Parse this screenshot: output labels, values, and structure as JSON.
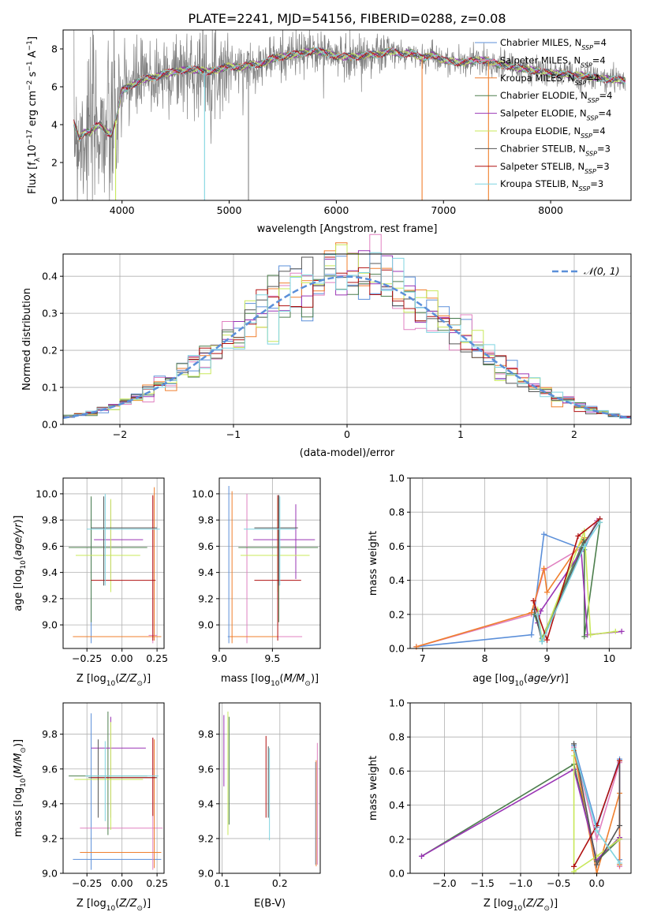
{
  "figure": {
    "title": "PLATE=2241, MJD=54156, FIBERID=0288, z=0.08"
  },
  "colors": {
    "Chabrier MILES": "#5b8fd9",
    "Salpeter MILES": "#e080c0",
    "Kroupa MILES": "#f07f2d",
    "Chabrier ELODIE": "#4d7f4d",
    "Salpeter ELODIE": "#9a35b5",
    "Kroupa ELODIE": "#c8e85a",
    "Chabrier STELIB": "#555555",
    "Salpeter STELIB": "#b01010",
    "Kroupa STELIB": "#7fd4e0",
    "data": "#808080",
    "normal": "#5b8fd9",
    "grid": "#b0b0b0"
  },
  "chart_data": [
    {
      "id": "spectrum",
      "type": "line",
      "xlabel": "wavelength [Angstrom, rest frame]",
      "ylabel": "Flux [f_λ 10^{-17} erg cm^{-2} s^{-1} A^{-1}]",
      "xlim": [
        3450,
        8750
      ],
      "ylim": [
        0,
        9
      ],
      "xticks": [
        4000,
        5000,
        6000,
        7000,
        8000
      ],
      "yticks": [
        0,
        2,
        4,
        6,
        8
      ],
      "grid": false,
      "legend_position": "right",
      "legend": [
        {
          "base": "Chabrier MILES, N",
          "sub": "SSP",
          "tail": "=4"
        },
        {
          "base": "Salpeter MILES, N",
          "sub": "SSP",
          "tail": "=4"
        },
        {
          "base": "Kroupa MILES, N",
          "sub": "SSP",
          "tail": "=4"
        },
        {
          "base": "Chabrier ELODIE, N",
          "sub": "SSP",
          "tail": "=4"
        },
        {
          "base": "Salpeter ELODIE, N",
          "sub": "SSP",
          "tail": "=4"
        },
        {
          "base": "Kroupa ELODIE, N",
          "sub": "SSP",
          "tail": "=4"
        },
        {
          "base": "Chabrier STELIB, N",
          "sub": "SSP",
          "tail": "=3"
        },
        {
          "base": "Salpeter STELIB, N",
          "sub": "SSP",
          "tail": "=3"
        },
        {
          "base": "Kroupa STELIB, N",
          "sub": "SSP",
          "tail": "=3"
        }
      ],
      "continuum": {
        "x": [
          3550,
          3600,
          3650,
          3700,
          3750,
          3800,
          3850,
          3900,
          3950,
          4000,
          4100,
          4200,
          4300,
          4400,
          4500,
          4600,
          4700,
          4800,
          4900,
          5000,
          5100,
          5200,
          5300,
          5400,
          5500,
          5600,
          5700,
          5800,
          5900,
          6000,
          6100,
          6200,
          6300,
          6400,
          6500,
          6600,
          6700,
          6800,
          6900,
          7000,
          7100,
          7200,
          7300,
          7400,
          7500,
          7600,
          7700,
          7800,
          7900,
          8000,
          8100,
          8200,
          8300,
          8400,
          8500,
          8600,
          8700
        ],
        "y": [
          4.1,
          3.3,
          3.6,
          3.6,
          3.9,
          4.0,
          3.6,
          3.5,
          4.4,
          5.8,
          6.1,
          6.4,
          6.5,
          6.7,
          6.8,
          6.9,
          6.9,
          6.8,
          6.9,
          7.1,
          7.0,
          7.2,
          7.2,
          7.5,
          7.6,
          7.7,
          7.8,
          7.9,
          7.8,
          7.6,
          7.6,
          7.6,
          7.7,
          7.7,
          7.9,
          7.7,
          7.8,
          7.5,
          7.7,
          7.4,
          7.3,
          7.3,
          7.4,
          7.4,
          7.2,
          7.1,
          7.0,
          6.9,
          6.8,
          6.7,
          6.7,
          6.6,
          6.6,
          6.5,
          6.4,
          6.4,
          6.3
        ]
      }
    },
    {
      "id": "residuals",
      "type": "histogram",
      "xlabel": "(data-model)/error",
      "ylabel": "Normed distribution",
      "xlim": [
        -2.5,
        2.5
      ],
      "ylim": [
        0,
        0.46
      ],
      "xticks": [
        -2,
        -1,
        0,
        1,
        2
      ],
      "yticks": [
        0.0,
        0.1,
        0.2,
        0.3,
        0.4
      ],
      "grid": true,
      "legend_position": "top-right",
      "legend": "𝒩(0, 1)",
      "bin_width": 0.1,
      "normal": {
        "mean": 0,
        "sigma": 1
      }
    },
    {
      "id": "age_vs_z",
      "type": "errorbar",
      "xlabel": "Z [log10(Z/Z⊙)]",
      "ylabel": "age  [log10(age/yr)]",
      "xlim": [
        -0.42,
        0.3
      ],
      "ylim": [
        8.82,
        10.12
      ],
      "xticks": [
        -0.25,
        0.0,
        0.25
      ],
      "yticks": [
        9.0,
        9.2,
        9.4,
        9.6,
        9.8,
        10.0
      ],
      "grid": true,
      "points": [
        {
          "model": "Chabrier MILES",
          "x": -0.22,
          "xlo": -0.35,
          "xhi": 0.28,
          "y": 8.91,
          "ylo": 8.86,
          "yhi": 9.97
        },
        {
          "model": "Salpeter MILES",
          "x": 0.22,
          "xlo": 0.19,
          "xhi": 0.25,
          "y": 8.92,
          "ylo": 8.86,
          "yhi": 9.98
        },
        {
          "model": "Kroupa MILES",
          "x": 0.23,
          "xlo": -0.35,
          "xhi": 0.28,
          "y": 8.91,
          "ylo": 8.88,
          "yhi": 10.05
        },
        {
          "model": "Chabrier ELODIE",
          "x": -0.22,
          "xlo": -0.38,
          "xhi": 0.18,
          "y": 9.59,
          "ylo": 9.02,
          "yhi": 9.98
        },
        {
          "model": "Salpeter ELODIE",
          "x": -0.08,
          "xlo": -0.2,
          "xhi": 0.15,
          "y": 9.65,
          "ylo": 9.35,
          "yhi": 9.95
        },
        {
          "model": "Kroupa ELODIE",
          "x": -0.08,
          "xlo": -0.33,
          "xhi": 0.13,
          "y": 9.53,
          "ylo": 9.25,
          "yhi": 9.96
        },
        {
          "model": "Chabrier STELIB",
          "x": -0.13,
          "xlo": -0.22,
          "xhi": 0.25,
          "y": 9.74,
          "ylo": 9.3,
          "yhi": 9.98
        },
        {
          "model": "Salpeter STELIB",
          "x": 0.22,
          "xlo": -0.22,
          "xhi": 0.24,
          "y": 9.34,
          "ylo": 8.88,
          "yhi": 9.99
        },
        {
          "model": "Kroupa STELIB",
          "x": -0.12,
          "xlo": -0.25,
          "xhi": 0.27,
          "y": 9.73,
          "ylo": 9.3,
          "yhi": 10.0
        }
      ]
    },
    {
      "id": "age_vs_mass",
      "type": "errorbar",
      "xlabel": "mass [log10(M/M⊙)]",
      "ylabel": "",
      "xlim": [
        9.0,
        9.95
      ],
      "ylim": [
        8.82,
        10.12
      ],
      "xticks": [
        9.0,
        9.5
      ],
      "yticks": [
        9.0,
        9.2,
        9.4,
        9.6,
        9.8,
        10.0
      ],
      "grid": true,
      "points": [
        {
          "model": "Chabrier MILES",
          "x": 9.09,
          "xlo": 9.08,
          "xhi": 9.58,
          "y": 8.91,
          "ylo": 8.86,
          "yhi": 10.06
        },
        {
          "model": "Salpeter MILES",
          "x": 9.26,
          "xlo": 9.1,
          "xhi": 9.78,
          "y": 8.91,
          "ylo": 8.86,
          "yhi": 10.0
        },
        {
          "model": "Kroupa MILES",
          "x": 9.12,
          "xlo": 9.1,
          "xhi": 9.55,
          "y": 8.91,
          "ylo": 8.86,
          "yhi": 10.02
        },
        {
          "model": "Chabrier ELODIE",
          "x": 9.56,
          "xlo": 9.18,
          "xhi": 9.93,
          "y": 9.59,
          "ylo": 9.02,
          "yhi": 9.99
        },
        {
          "model": "Salpeter ELODIE",
          "x": 9.72,
          "xlo": 9.32,
          "xhi": 9.9,
          "y": 9.65,
          "ylo": 9.35,
          "yhi": 9.92
        },
        {
          "model": "Kroupa ELODIE",
          "x": 9.55,
          "xlo": 9.2,
          "xhi": 9.85,
          "y": 9.53,
          "ylo": 9.25,
          "yhi": 9.97
        },
        {
          "model": "Chabrier STELIB",
          "x": 9.56,
          "xlo": 9.33,
          "xhi": 9.74,
          "y": 9.74,
          "ylo": 9.3,
          "yhi": 9.99
        },
        {
          "model": "Salpeter STELIB",
          "x": 9.55,
          "xlo": 9.33,
          "xhi": 9.77,
          "y": 9.34,
          "ylo": 8.88,
          "yhi": 9.99
        },
        {
          "model": "Kroupa STELIB",
          "x": 9.57,
          "xlo": 9.23,
          "xhi": 9.72,
          "y": 9.73,
          "ylo": 9.3,
          "yhi": 9.98
        }
      ]
    },
    {
      "id": "weight_vs_age",
      "type": "line",
      "xlabel": "age  [log10(age/yr)]",
      "ylabel": "mass weight",
      "xlim": [
        6.8,
        10.35
      ],
      "ylim": [
        0.0,
        1.0
      ],
      "xticks": [
        7,
        8,
        9,
        10
      ],
      "yticks": [
        0.0,
        0.2,
        0.4,
        0.6,
        0.8,
        1.0
      ],
      "grid": true,
      "series": [
        {
          "model": "Chabrier MILES",
          "x": [
            6.9,
            8.75,
            8.95,
            9.6,
            9.8
          ],
          "y": [
            0.01,
            0.08,
            0.67,
            0.58,
            0.75
          ]
        },
        {
          "model": "Salpeter MILES",
          "x": [
            6.9,
            8.75,
            8.95,
            9.6,
            9.8
          ],
          "y": [
            0.01,
            0.2,
            0.46,
            0.6,
            0.75
          ]
        },
        {
          "model": "Kroupa MILES",
          "x": [
            6.9,
            8.75,
            8.95,
            9.0,
            9.6
          ],
          "y": [
            0.01,
            0.21,
            0.47,
            0.33,
            0.65
          ]
        },
        {
          "model": "Chabrier ELODIE",
          "x": [
            8.8,
            8.92,
            9.6,
            9.6,
            9.85
          ],
          "y": [
            0.2,
            0.06,
            0.64,
            0.07,
            0.74
          ]
        },
        {
          "model": "Salpeter ELODIE",
          "x": [
            8.85,
            8.9,
            9.55,
            9.65,
            10.2
          ],
          "y": [
            0.15,
            0.22,
            0.57,
            0.08,
            0.1
          ]
        },
        {
          "model": "Kroupa ELODIE",
          "x": [
            8.85,
            8.92,
            9.6,
            9.7,
            10.1
          ],
          "y": [
            0.23,
            0.05,
            0.69,
            0.08,
            0.1
          ]
        },
        {
          "model": "Chabrier STELIB",
          "x": [
            8.8,
            8.92,
            9.6,
            9.85
          ],
          "y": [
            0.23,
            0.04,
            0.62,
            0.76
          ]
        },
        {
          "model": "Salpeter STELIB",
          "x": [
            8.78,
            9.0,
            9.5,
            9.85
          ],
          "y": [
            0.28,
            0.05,
            0.66,
            0.76
          ]
        },
        {
          "model": "Kroupa STELIB",
          "x": [
            8.85,
            8.92,
            9.6,
            9.85
          ],
          "y": [
            0.2,
            0.04,
            0.6,
            0.74
          ]
        }
      ]
    },
    {
      "id": "mass_vs_z",
      "type": "errorbar",
      "xlabel": "Z [log10(Z/Z⊙)]",
      "ylabel": "mass [log10(M/M⊙)]",
      "xlim": [
        -0.42,
        0.3
      ],
      "ylim": [
        9.0,
        9.98
      ],
      "xticks": [
        -0.25,
        0.0,
        0.25
      ],
      "yticks": [
        9.0,
        9.2,
        9.4,
        9.6,
        9.8
      ],
      "grid": true,
      "points": [
        {
          "model": "Chabrier MILES",
          "x": -0.22,
          "xlo": -0.35,
          "xhi": 0.28,
          "y": 9.08,
          "ylo": 9.02,
          "yhi": 9.92
        },
        {
          "model": "Salpeter MILES",
          "x": 0.22,
          "xlo": -0.3,
          "xhi": 0.29,
          "y": 9.26,
          "ylo": 9.02,
          "yhi": 9.78
        },
        {
          "model": "Kroupa MILES",
          "x": 0.23,
          "xlo": -0.3,
          "xhi": 0.28,
          "y": 9.12,
          "ylo": 9.03,
          "yhi": 9.77
        },
        {
          "model": "Chabrier ELODIE",
          "x": -0.1,
          "xlo": -0.38,
          "xhi": 0.18,
          "y": 9.56,
          "ylo": 9.22,
          "yhi": 9.93
        },
        {
          "model": "Salpeter ELODIE",
          "x": -0.08,
          "xlo": -0.22,
          "xhi": 0.17,
          "y": 9.72,
          "ylo": 9.32,
          "yhi": 9.9
        },
        {
          "model": "Kroupa ELODIE",
          "x": -0.08,
          "xlo": -0.34,
          "xhi": 0.15,
          "y": 9.54,
          "ylo": 9.25,
          "yhi": 9.87
        },
        {
          "model": "Chabrier STELIB",
          "x": -0.17,
          "xlo": -0.24,
          "xhi": 0.25,
          "y": 9.55,
          "ylo": 9.32,
          "yhi": 9.77
        },
        {
          "model": "Salpeter STELIB",
          "x": 0.22,
          "xlo": -0.22,
          "xhi": 0.24,
          "y": 9.55,
          "ylo": 9.33,
          "yhi": 9.78
        },
        {
          "model": "Kroupa STELIB",
          "x": -0.12,
          "xlo": -0.26,
          "xhi": 0.26,
          "y": 9.56,
          "ylo": 9.3,
          "yhi": 9.76
        }
      ]
    },
    {
      "id": "mass_vs_ebv",
      "type": "errorbar",
      "xlabel": "E(B-V)",
      "ylabel": "",
      "xlim": [
        0.095,
        0.27
      ],
      "ylim": [
        9.0,
        9.98
      ],
      "xticks": [
        0.1,
        0.2
      ],
      "yticks": [
        9.0,
        9.2,
        9.4,
        9.6,
        9.8
      ],
      "grid": true,
      "points": [
        {
          "model": "Chabrier MILES",
          "x": 0.262,
          "ylo": 9.05,
          "yhi": 9.64
        },
        {
          "model": "Salpeter MILES",
          "x": 0.265,
          "ylo": 9.05,
          "yhi": 9.75
        },
        {
          "model": "Kroupa MILES",
          "x": 0.263,
          "ylo": 9.04,
          "yhi": 9.65
        },
        {
          "model": "Chabrier ELODIE",
          "x": 0.112,
          "ylo": 9.28,
          "yhi": 9.9
        },
        {
          "model": "Salpeter ELODIE",
          "x": 0.103,
          "ylo": 9.5,
          "yhi": 9.91
        },
        {
          "model": "Kroupa ELODIE",
          "x": 0.11,
          "ylo": 9.22,
          "yhi": 9.93
        },
        {
          "model": "Chabrier STELIB",
          "x": 0.18,
          "ylo": 9.32,
          "yhi": 9.73
        },
        {
          "model": "Salpeter STELIB",
          "x": 0.176,
          "ylo": 9.32,
          "yhi": 9.79
        },
        {
          "model": "Kroupa STELIB",
          "x": 0.182,
          "ylo": 9.19,
          "yhi": 9.72
        }
      ]
    },
    {
      "id": "weight_vs_z",
      "type": "line",
      "xlabel": "Z [log10(Z/Z⊙)]",
      "ylabel": "mass weight",
      "xlim": [
        -2.45,
        0.45
      ],
      "ylim": [
        0.0,
        1.0
      ],
      "xticks": [
        -2.0,
        -1.5,
        -1.0,
        -0.5,
        0.0
      ],
      "yticks": [
        0.0,
        0.2,
        0.4,
        0.6,
        0.8,
        1.0
      ],
      "grid": true,
      "series": [
        {
          "model": "Chabrier MILES",
          "x": [
            -0.3,
            0.0,
            0.3,
            0.3,
            0.3
          ],
          "y": [
            0.75,
            0.27,
            0.67,
            0.08,
            0.05
          ]
        },
        {
          "model": "Salpeter MILES",
          "x": [
            -0.3,
            0.0,
            0.3,
            0.3
          ],
          "y": [
            0.74,
            0.2,
            0.65,
            0.04
          ]
        },
        {
          "model": "Kroupa MILES",
          "x": [
            -0.3,
            0.0,
            0.3,
            0.3,
            0.3
          ],
          "y": [
            0.72,
            0.0,
            0.47,
            0.21,
            0.05
          ]
        },
        {
          "model": "Chabrier ELODIE",
          "x": [
            -2.3,
            -0.3,
            0.0,
            0.3
          ],
          "y": [
            0.1,
            0.64,
            0.07,
            0.2
          ]
        },
        {
          "model": "Salpeter ELODIE",
          "x": [
            -2.3,
            -0.3,
            0.0,
            0.3
          ],
          "y": [
            0.1,
            0.61,
            0.08,
            0.21
          ]
        },
        {
          "model": "Kroupa ELODIE",
          "x": [
            -0.3,
            -0.3,
            0.0,
            0.3
          ],
          "y": [
            0.69,
            0.01,
            0.1,
            0.2
          ]
        },
        {
          "model": "Chabrier STELIB",
          "x": [
            -0.3,
            0.0,
            0.3,
            0.3
          ],
          "y": [
            0.76,
            0.05,
            0.28,
            0.66
          ]
        },
        {
          "model": "Salpeter STELIB",
          "x": [
            -0.3,
            0.0,
            0.3
          ],
          "y": [
            0.04,
            0.28,
            0.66
          ]
        },
        {
          "model": "Kroupa STELIB",
          "x": [
            -0.3,
            0.0,
            0.3
          ],
          "y": [
            0.73,
            0.25,
            0.06
          ]
        }
      ]
    }
  ]
}
